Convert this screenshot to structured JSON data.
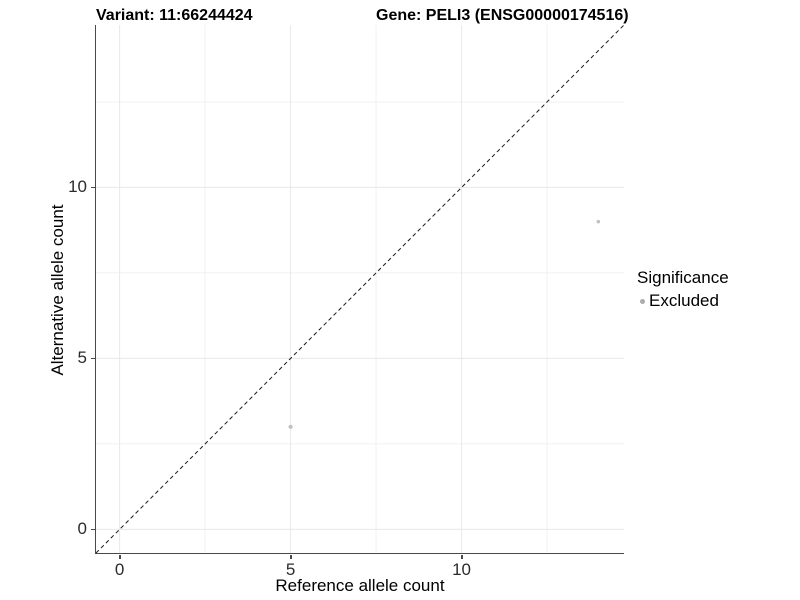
{
  "chart_data": {
    "type": "scatter",
    "title_left": "Variant: 11:66244424",
    "title_right": "Gene: PELI3 (ENSG00000174516)",
    "xlabel": "Reference allele count",
    "ylabel": "Alternative allele count",
    "xlim": [
      -0.69,
      14.75
    ],
    "ylim": [
      -0.69,
      14.75
    ],
    "x_ticks": [
      0,
      5,
      10
    ],
    "y_ticks": [
      0,
      5,
      10
    ],
    "grid_major": [
      0,
      5,
      10
    ],
    "grid_minor": [
      2.5,
      7.5,
      12.5
    ],
    "grid_on": true,
    "points": [
      {
        "x": 5,
        "y": 3,
        "r": 2.1
      },
      {
        "x": 14,
        "y": 9,
        "r": 1.8
      }
    ],
    "point_color": "#c0c0c0",
    "identity_line": {
      "from_x": -0.69,
      "from_y": -0.69,
      "to_x": 14.75,
      "to_y": 14.75,
      "style": "dashed",
      "color": "#1a1a1a"
    },
    "colors": {
      "grid_major": "#e8e8e8",
      "grid_minor": "#f1f1f1",
      "axis_line": "#4a4a4a",
      "tick_text": "#2b2b2b"
    },
    "legend": {
      "title": "Significance",
      "position": "right",
      "items": [
        {
          "label": "Excluded",
          "color": "#ababab",
          "marker": "circle"
        }
      ]
    }
  }
}
